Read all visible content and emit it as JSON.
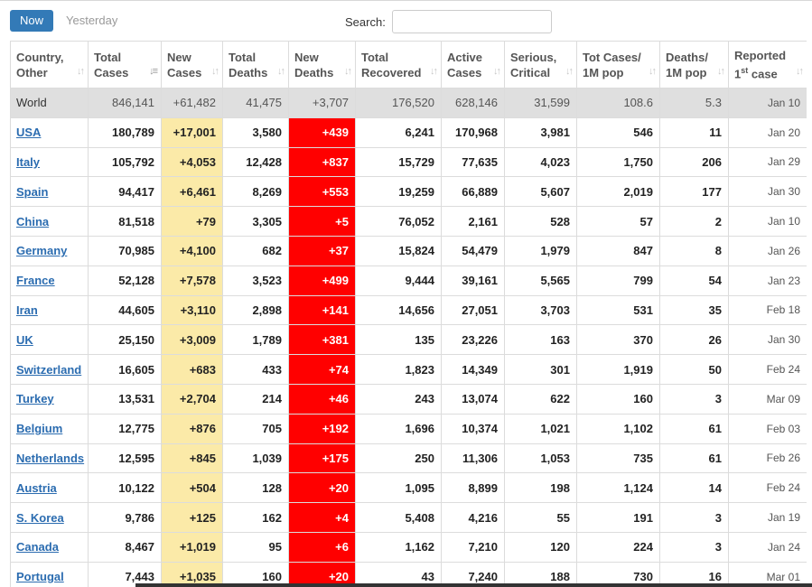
{
  "controls": {
    "tab_now": "Now",
    "tab_yesterday": "Yesterday",
    "search_label": "Search:",
    "search_value": ""
  },
  "colors": {
    "tab_active": "#337ab7",
    "new_cases_highlight": "#fbeaa8",
    "new_deaths_highlight": "#ff0000",
    "world_row": "#dfdfdf",
    "link": "#2b6cb0"
  },
  "columns": [
    {
      "line1": "Country,",
      "line2": "Other",
      "sorted": false
    },
    {
      "line1": "Total",
      "line2": "Cases",
      "sorted": true
    },
    {
      "line1": "New",
      "line2": "Cases",
      "sorted": false
    },
    {
      "line1": "Total",
      "line2": "Deaths",
      "sorted": false
    },
    {
      "line1": "New",
      "line2": "Deaths",
      "sorted": false
    },
    {
      "line1": "Total",
      "line2": "Recovered",
      "sorted": false
    },
    {
      "line1": "Active",
      "line2": "Cases",
      "sorted": false
    },
    {
      "line1": "Serious,",
      "line2": "Critical",
      "sorted": false
    },
    {
      "line1": "Tot Cases/",
      "line2": "1M pop",
      "sorted": false
    },
    {
      "line1": "Deaths/",
      "line2": "1M pop",
      "sorted": false
    },
    {
      "line1": "Reported",
      "line2": "1",
      "line2_sup": "st",
      "line2_tail": " case",
      "sorted": false
    }
  ],
  "world": {
    "country": "World",
    "total_cases": "846,141",
    "new_cases": "+61,482",
    "total_deaths": "41,475",
    "new_deaths": "+3,707",
    "total_recovered": "176,520",
    "active_cases": "628,146",
    "serious": "31,599",
    "cases_per_1m": "108.6",
    "deaths_per_1m": "5.3",
    "reported": "Jan 10"
  },
  "rows": [
    {
      "country": "USA",
      "total_cases": "180,789",
      "new_cases": "+17,001",
      "total_deaths": "3,580",
      "new_deaths": "+439",
      "total_recovered": "6,241",
      "active_cases": "170,968",
      "serious": "3,981",
      "cases_per_1m": "546",
      "deaths_per_1m": "11",
      "reported": "Jan 20"
    },
    {
      "country": "Italy",
      "total_cases": "105,792",
      "new_cases": "+4,053",
      "total_deaths": "12,428",
      "new_deaths": "+837",
      "total_recovered": "15,729",
      "active_cases": "77,635",
      "serious": "4,023",
      "cases_per_1m": "1,750",
      "deaths_per_1m": "206",
      "reported": "Jan 29"
    },
    {
      "country": "Spain",
      "total_cases": "94,417",
      "new_cases": "+6,461",
      "total_deaths": "8,269",
      "new_deaths": "+553",
      "total_recovered": "19,259",
      "active_cases": "66,889",
      "serious": "5,607",
      "cases_per_1m": "2,019",
      "deaths_per_1m": "177",
      "reported": "Jan 30"
    },
    {
      "country": "China",
      "total_cases": "81,518",
      "new_cases": "+79",
      "total_deaths": "3,305",
      "new_deaths": "+5",
      "total_recovered": "76,052",
      "active_cases": "2,161",
      "serious": "528",
      "cases_per_1m": "57",
      "deaths_per_1m": "2",
      "reported": "Jan 10"
    },
    {
      "country": "Germany",
      "total_cases": "70,985",
      "new_cases": "+4,100",
      "total_deaths": "682",
      "new_deaths": "+37",
      "total_recovered": "15,824",
      "active_cases": "54,479",
      "serious": "1,979",
      "cases_per_1m": "847",
      "deaths_per_1m": "8",
      "reported": "Jan 26"
    },
    {
      "country": "France",
      "total_cases": "52,128",
      "new_cases": "+7,578",
      "total_deaths": "3,523",
      "new_deaths": "+499",
      "total_recovered": "9,444",
      "active_cases": "39,161",
      "serious": "5,565",
      "cases_per_1m": "799",
      "deaths_per_1m": "54",
      "reported": "Jan 23"
    },
    {
      "country": "Iran",
      "total_cases": "44,605",
      "new_cases": "+3,110",
      "total_deaths": "2,898",
      "new_deaths": "+141",
      "total_recovered": "14,656",
      "active_cases": "27,051",
      "serious": "3,703",
      "cases_per_1m": "531",
      "deaths_per_1m": "35",
      "reported": "Feb 18"
    },
    {
      "country": "UK",
      "total_cases": "25,150",
      "new_cases": "+3,009",
      "total_deaths": "1,789",
      "new_deaths": "+381",
      "total_recovered": "135",
      "active_cases": "23,226",
      "serious": "163",
      "cases_per_1m": "370",
      "deaths_per_1m": "26",
      "reported": "Jan 30"
    },
    {
      "country": "Switzerland",
      "total_cases": "16,605",
      "new_cases": "+683",
      "total_deaths": "433",
      "new_deaths": "+74",
      "total_recovered": "1,823",
      "active_cases": "14,349",
      "serious": "301",
      "cases_per_1m": "1,919",
      "deaths_per_1m": "50",
      "reported": "Feb 24"
    },
    {
      "country": "Turkey",
      "total_cases": "13,531",
      "new_cases": "+2,704",
      "total_deaths": "214",
      "new_deaths": "+46",
      "total_recovered": "243",
      "active_cases": "13,074",
      "serious": "622",
      "cases_per_1m": "160",
      "deaths_per_1m": "3",
      "reported": "Mar 09"
    },
    {
      "country": "Belgium",
      "total_cases": "12,775",
      "new_cases": "+876",
      "total_deaths": "705",
      "new_deaths": "+192",
      "total_recovered": "1,696",
      "active_cases": "10,374",
      "serious": "1,021",
      "cases_per_1m": "1,102",
      "deaths_per_1m": "61",
      "reported": "Feb 03"
    },
    {
      "country": "Netherlands",
      "total_cases": "12,595",
      "new_cases": "+845",
      "total_deaths": "1,039",
      "new_deaths": "+175",
      "total_recovered": "250",
      "active_cases": "11,306",
      "serious": "1,053",
      "cases_per_1m": "735",
      "deaths_per_1m": "61",
      "reported": "Feb 26"
    },
    {
      "country": "Austria",
      "total_cases": "10,122",
      "new_cases": "+504",
      "total_deaths": "128",
      "new_deaths": "+20",
      "total_recovered": "1,095",
      "active_cases": "8,899",
      "serious": "198",
      "cases_per_1m": "1,124",
      "deaths_per_1m": "14",
      "reported": "Feb 24"
    },
    {
      "country": "S. Korea",
      "total_cases": "9,786",
      "new_cases": "+125",
      "total_deaths": "162",
      "new_deaths": "+4",
      "total_recovered": "5,408",
      "active_cases": "4,216",
      "serious": "55",
      "cases_per_1m": "191",
      "deaths_per_1m": "3",
      "reported": "Jan 19"
    },
    {
      "country": "Canada",
      "total_cases": "8,467",
      "new_cases": "+1,019",
      "total_deaths": "95",
      "new_deaths": "+6",
      "total_recovered": "1,162",
      "active_cases": "7,210",
      "serious": "120",
      "cases_per_1m": "224",
      "deaths_per_1m": "3",
      "reported": "Jan 24"
    },
    {
      "country": "Portugal",
      "total_cases": "7,443",
      "new_cases": "+1,035",
      "total_deaths": "160",
      "new_deaths": "+20",
      "total_recovered": "43",
      "active_cases": "7,240",
      "serious": "188",
      "cases_per_1m": "730",
      "deaths_per_1m": "16",
      "reported": "Mar 01"
    }
  ]
}
